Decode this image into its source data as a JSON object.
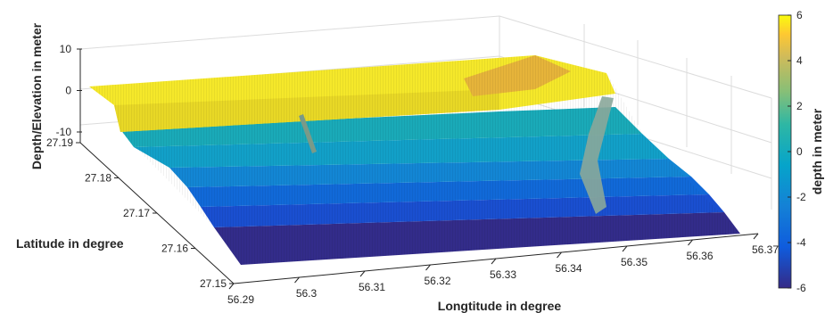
{
  "chart_data": {
    "type": "surface3d",
    "xlabel": "Longtitude in degree",
    "ylabel": "Latitude in degree",
    "zlabel": "Depth/Elevation in meter",
    "colorbar_label": "depth in meter",
    "colormap": "parula",
    "x_ticks": [
      "56.29",
      "56.3",
      "56.31",
      "56.32",
      "56.33",
      "56.34",
      "56.35",
      "56.36",
      "56.37"
    ],
    "y_ticks": [
      "27.15",
      "27.16",
      "27.17",
      "27.18",
      "27.19"
    ],
    "z_ticks": [
      "10",
      "0",
      "-10"
    ],
    "colorbar_ticks": [
      "6",
      "4",
      "2",
      "0",
      "-2",
      "-4",
      "-6"
    ],
    "xlim": [
      56.29,
      56.37
    ],
    "ylim": [
      27.15,
      27.19
    ],
    "zlim": [
      -10,
      10
    ],
    "clim": [
      -6,
      6
    ],
    "grid": true,
    "colorbar_position": "right",
    "surface_profile": {
      "latitude": [
        27.15,
        27.155,
        27.16,
        27.165,
        27.17,
        27.175,
        27.18,
        27.185,
        27.19
      ],
      "depth": [
        -6,
        -5,
        -4,
        -3,
        -2,
        -1,
        0,
        0.5,
        6
      ]
    }
  }
}
